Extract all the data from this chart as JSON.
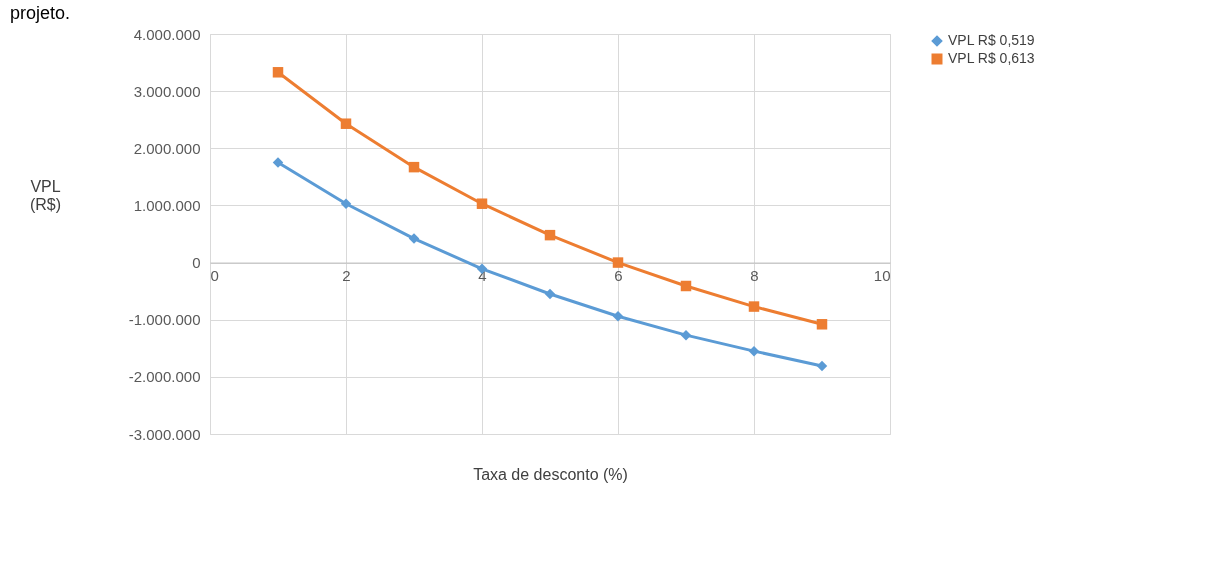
{
  "chart_data": {
    "type": "line",
    "title": "projeto.",
    "xlabel": "Taxa de desconto (%)",
    "ylabel": "VPL (R$)",
    "x": [
      1,
      2,
      3,
      4,
      5,
      6,
      7,
      8,
      9
    ],
    "series": [
      {
        "name": "VPL R$ 0,519",
        "color": "#5b9bd5",
        "marker": "diamond",
        "values": [
          1750000,
          1030000,
          420000,
          -110000,
          -550000,
          -940000,
          -1270000,
          -1550000,
          -1810000
        ]
      },
      {
        "name": "VPL R$ 0,613",
        "color": "#ed7d31",
        "marker": "square",
        "values": [
          3330000,
          2430000,
          1670000,
          1030000,
          480000,
          0,
          -410000,
          -770000,
          -1080000
        ]
      }
    ],
    "xlim": [
      0,
      10
    ],
    "xticks": [
      0,
      2,
      4,
      6,
      8,
      10
    ],
    "ylim": [
      -3000000,
      4000000
    ],
    "yticks": [
      {
        "value": -3000000,
        "label": "-3.000.000"
      },
      {
        "value": -2000000,
        "label": "-2.000.000"
      },
      {
        "value": -1000000,
        "label": "-1.000.000"
      },
      0,
      {
        "value": 1000000,
        "label": "1.000.000"
      },
      {
        "value": 2000000,
        "label": "2.000.000"
      },
      {
        "value": 3000000,
        "label": "3.000.000"
      },
      {
        "value": 4000000,
        "label": "4.000.000"
      }
    ],
    "grid": true,
    "legend": "right",
    "line_style": "solid"
  }
}
